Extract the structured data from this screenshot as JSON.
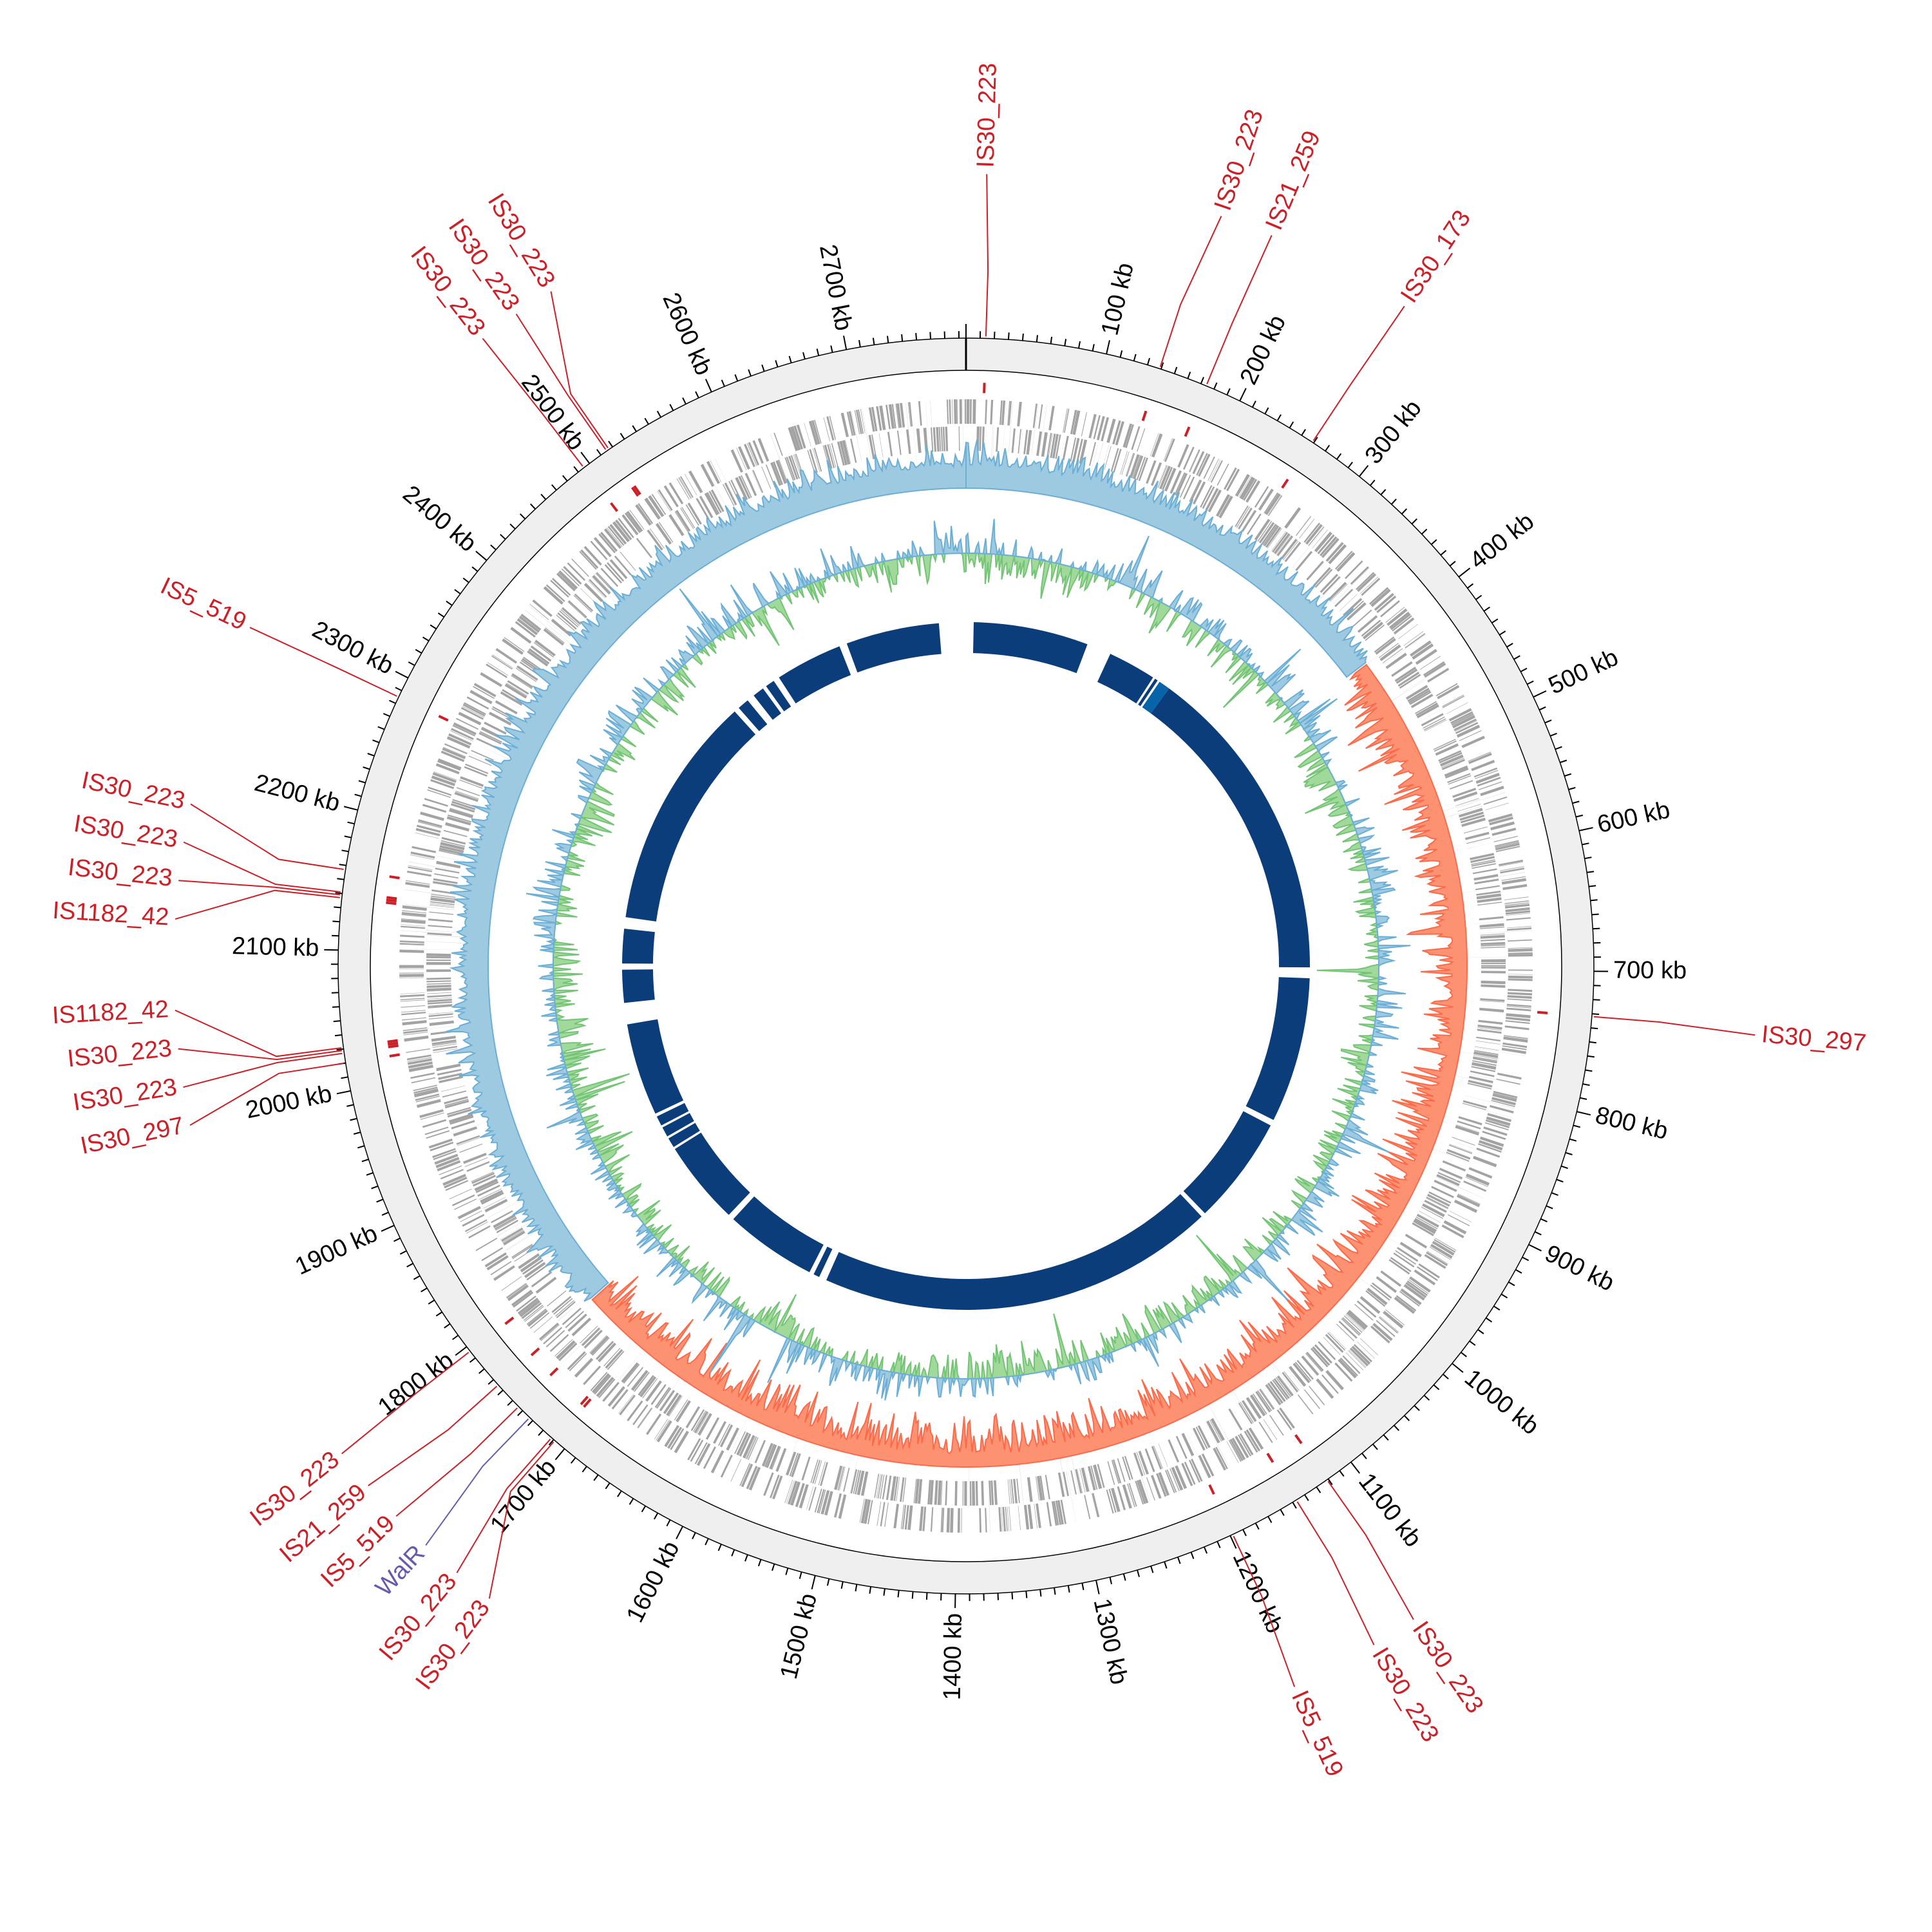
{
  "genome": {
    "length_kb": 2785,
    "unit": "kb"
  },
  "colors": {
    "ring_fill": "#efefef",
    "gene": "#a3a3a3",
    "is_element": "#cc1f26",
    "regulator": "#6a5aad",
    "skew_positive_fill": "#9ecae1",
    "skew_positive_line": "#6baed6",
    "skew_negative_fill": "#fc9272",
    "skew_negative_line": "#fb6a4a",
    "gc_positive_fill": "#9ecae1",
    "gc_positive_line": "#6baed6",
    "gc_negative_fill": "#a1d99b",
    "gc_negative_line": "#74c476",
    "inner_ring": "#0a3d7a",
    "inner_ring_light": "#0864a8"
  },
  "ticks": {
    "major_step_kb": 100,
    "minor_step_kb": 10,
    "labels": [
      {
        "kb": 100,
        "text": "100 kb"
      },
      {
        "kb": 200,
        "text": "200 kb"
      },
      {
        "kb": 300,
        "text": "300 kb"
      },
      {
        "kb": 400,
        "text": "400 kb"
      },
      {
        "kb": 500,
        "text": "500 kb"
      },
      {
        "kb": 600,
        "text": "600 kb"
      },
      {
        "kb": 700,
        "text": "700 kb"
      },
      {
        "kb": 800,
        "text": "800 kb"
      },
      {
        "kb": 900,
        "text": "900 kb"
      },
      {
        "kb": 1000,
        "text": "1000 kb"
      },
      {
        "kb": 1100,
        "text": "1100 kb"
      },
      {
        "kb": 1200,
        "text": "1200 kb"
      },
      {
        "kb": 1300,
        "text": "1300 kb"
      },
      {
        "kb": 1400,
        "text": "1400 kb"
      },
      {
        "kb": 1500,
        "text": "1500 kb"
      },
      {
        "kb": 1600,
        "text": "1600 kb"
      },
      {
        "kb": 1700,
        "text": "1700 kb"
      },
      {
        "kb": 1800,
        "text": "1800 kb"
      },
      {
        "kb": 1900,
        "text": "1900 kb"
      },
      {
        "kb": 2000,
        "text": "2000 kb"
      },
      {
        "kb": 2100,
        "text": "2100 kb"
      },
      {
        "kb": 2200,
        "text": "2200 kb"
      },
      {
        "kb": 2300,
        "text": "2300 kb"
      },
      {
        "kb": 2400,
        "text": "2400 kb"
      },
      {
        "kb": 2500,
        "text": "2500 kb"
      },
      {
        "kb": 2600,
        "text": "2600 kb"
      },
      {
        "kb": 2700,
        "text": "2700 kb"
      }
    ]
  },
  "features": [
    {
      "name": "IS30_223",
      "kb": 14,
      "type": "is_element"
    },
    {
      "name": "IS30_223",
      "kb": 139,
      "type": "is_element"
    },
    {
      "name": "IS21_259",
      "kb": 174,
      "type": "is_element"
    },
    {
      "name": "IS30_173",
      "kb": 259,
      "type": "is_element"
    },
    {
      "name": "IS30_297",
      "kb": 732,
      "type": "is_element"
    },
    {
      "name": "IS30_223",
      "kb": 1121,
      "type": "is_element"
    },
    {
      "name": "IS30_223",
      "kb": 1147,
      "type": "is_element"
    },
    {
      "name": "IS5_519",
      "kb": 1198,
      "type": "is_element"
    },
    {
      "name": "IS30_223",
      "kb": 1709,
      "type": "is_element"
    },
    {
      "name": "IS30_223",
      "kb": 1712,
      "type": "is_element"
    },
    {
      "name": "WalR",
      "kb": 1733,
      "type": "regulator"
    },
    {
      "name": "IS5_519",
      "kb": 1744,
      "type": "is_element"
    },
    {
      "name": "IS21_259",
      "kb": 1765,
      "type": "is_element"
    },
    {
      "name": "IS30_223",
      "kb": 1796,
      "type": "is_element"
    },
    {
      "name": "IS30_297",
      "kb": 2020,
      "type": "is_element"
    },
    {
      "name": "IS30_223",
      "kb": 2027,
      "type": "is_element"
    },
    {
      "name": "IS30_223",
      "kb": 2029,
      "type": "is_element"
    },
    {
      "name": "IS1182_42",
      "kb": 2031,
      "type": "is_element"
    },
    {
      "name": "IS1182_42",
      "kb": 2137,
      "type": "is_element"
    },
    {
      "name": "IS30_223",
      "kb": 2139,
      "type": "is_element"
    },
    {
      "name": "IS30_223",
      "kb": 2141,
      "type": "is_element"
    },
    {
      "name": "IS30_223",
      "kb": 2157,
      "type": "is_element"
    },
    {
      "name": "IS5_519",
      "kb": 2285,
      "type": "is_element"
    },
    {
      "name": "IS30_223",
      "kb": 2495,
      "type": "is_element"
    },
    {
      "name": "IS30_223",
      "kb": 2515,
      "type": "is_element"
    },
    {
      "name": "IS30_223",
      "kb": 2517,
      "type": "is_element"
    }
  ],
  "skew_negative_region_kb": [
    410,
    1766
  ],
  "inner_ring_segments_kb": [
    [
      10,
      160
    ],
    [
      192,
      255
    ],
    [
      258,
      262
    ],
    [
      265,
      280,
      "light"
    ],
    [
      280,
      698
    ],
    [
      712,
      902
    ],
    [
      910,
      1052
    ],
    [
      1058,
      1578
    ],
    [
      1588,
      1596
    ],
    [
      1602,
      1722
    ],
    [
      1730,
      1840
    ],
    [
      1843,
      1856
    ],
    [
      1859,
      1872
    ],
    [
      1875,
      1888
    ],
    [
      1892,
      2013
    ],
    [
      2041,
      2084
    ],
    [
      2092,
      2137
    ],
    [
      2152,
      2458
    ],
    [
      2465,
      2480
    ],
    [
      2490,
      2505
    ],
    [
      2510,
      2522
    ],
    [
      2530,
      2618
    ],
    [
      2628,
      2750
    ]
  ]
}
